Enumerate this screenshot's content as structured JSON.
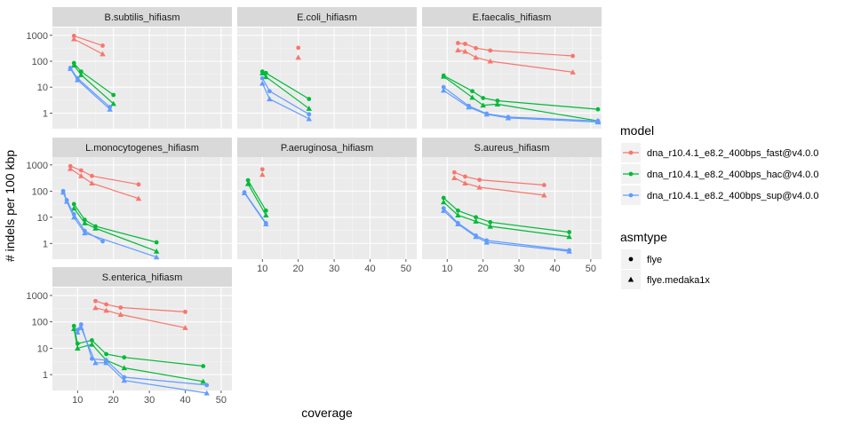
{
  "chart_data": {
    "type": "line",
    "xlabel": "coverage",
    "ylabel": "# indels per 100 kbp",
    "x_ticks": [
      "10",
      "20",
      "30",
      "40",
      "50"
    ],
    "y_ticks": [
      "1",
      "10",
      "100",
      "1000"
    ],
    "y_scale": "log10",
    "xlim": [
      3,
      53
    ],
    "ylim": [
      0.25,
      2000
    ],
    "grid": true,
    "facet_layout": "3x3",
    "legend_position": "right",
    "colors": {
      "dna_r10.4.1_e8.2_400bps_fast@v4.0.0": "#F8766D",
      "dna_r10.4.1_e8.2_400bps_hac@v4.0.0": "#00BA38",
      "dna_r10.4.1_e8.2_400bps_sup@v4.0.0": "#619CFF"
    },
    "legend": {
      "model": {
        "title": "model",
        "entries": [
          "dna_r10.4.1_e8.2_400bps_fast@v4.0.0",
          "dna_r10.4.1_e8.2_400bps_hac@v4.0.0",
          "dna_r10.4.1_e8.2_400bps_sup@v4.0.0"
        ]
      },
      "asmtype": {
        "title": "asmtype",
        "entries": [
          "flye",
          "flye.medaka1x"
        ]
      }
    },
    "panels": [
      {
        "title": "B.subtilis_hifiasm",
        "series": [
          {
            "model": "dna_r10.4.1_e8.2_400bps_fast@v4.0.0",
            "asmtype": "flye",
            "points": [
              [
                9,
                950
              ],
              [
                17,
                400
              ]
            ]
          },
          {
            "model": "dna_r10.4.1_e8.2_400bps_fast@v4.0.0",
            "asmtype": "flye.medaka1x",
            "points": [
              [
                9,
                720
              ],
              [
                17,
                190
              ]
            ]
          },
          {
            "model": "dna_r10.4.1_e8.2_400bps_hac@v4.0.0",
            "asmtype": "flye",
            "points": [
              [
                9,
                85
              ],
              [
                11,
                40
              ],
              [
                20,
                5
              ]
            ]
          },
          {
            "model": "dna_r10.4.1_e8.2_400bps_hac@v4.0.0",
            "asmtype": "flye.medaka1x",
            "points": [
              [
                9,
                70
              ],
              [
                11,
                30
              ],
              [
                20,
                2.3
              ]
            ]
          },
          {
            "model": "dna_r10.4.1_e8.2_400bps_sup@v4.0.0",
            "asmtype": "flye",
            "points": [
              [
                8,
                55
              ],
              [
                10,
                22
              ],
              [
                19,
                1.7
              ]
            ]
          },
          {
            "model": "dna_r10.4.1_e8.2_400bps_sup@v4.0.0",
            "asmtype": "flye.medaka1x",
            "points": [
              [
                8,
                52
              ],
              [
                10,
                19
              ],
              [
                19,
                1.4
              ]
            ]
          }
        ]
      },
      {
        "title": "E.coli_hifiasm",
        "series": [
          {
            "model": "dna_r10.4.1_e8.2_400bps_fast@v4.0.0",
            "asmtype": "flye",
            "points": [
              [
                20,
                330
              ]
            ]
          },
          {
            "model": "dna_r10.4.1_e8.2_400bps_fast@v4.0.0",
            "asmtype": "flye.medaka1x",
            "points": [
              [
                20,
                140
              ]
            ]
          },
          {
            "model": "dna_r10.4.1_e8.2_400bps_hac@v4.0.0",
            "asmtype": "flye",
            "points": [
              [
                10,
                40
              ],
              [
                11,
                35
              ],
              [
                23,
                3.5
              ]
            ]
          },
          {
            "model": "dna_r10.4.1_e8.2_400bps_hac@v4.0.0",
            "asmtype": "flye.medaka1x",
            "points": [
              [
                10,
                35
              ],
              [
                11,
                25
              ],
              [
                23,
                1.5
              ]
            ]
          },
          {
            "model": "dna_r10.4.1_e8.2_400bps_sup@v4.0.0",
            "asmtype": "flye",
            "points": [
              [
                10,
                22
              ],
              [
                12,
                7
              ],
              [
                23,
                0.9
              ]
            ]
          },
          {
            "model": "dna_r10.4.1_e8.2_400bps_sup@v4.0.0",
            "asmtype": "flye.medaka1x",
            "points": [
              [
                10,
                14
              ],
              [
                12,
                3.5
              ],
              [
                23,
                0.6
              ]
            ]
          }
        ]
      },
      {
        "title": "E.faecalis_hifiasm",
        "series": [
          {
            "model": "dna_r10.4.1_e8.2_400bps_fast@v4.0.0",
            "asmtype": "flye",
            "points": [
              [
                13,
                500
              ],
              [
                15,
                470
              ],
              [
                18,
                320
              ],
              [
                22,
                260
              ],
              [
                45,
                160
              ]
            ]
          },
          {
            "model": "dna_r10.4.1_e8.2_400bps_fast@v4.0.0",
            "asmtype": "flye.medaka1x",
            "points": [
              [
                13,
                270
              ],
              [
                15,
                240
              ],
              [
                18,
                140
              ],
              [
                22,
                100
              ],
              [
                45,
                38
              ]
            ]
          },
          {
            "model": "dna_r10.4.1_e8.2_400bps_hac@v4.0.0",
            "asmtype": "flye",
            "points": [
              [
                9,
                28
              ],
              [
                17,
                7
              ],
              [
                20,
                3.8
              ],
              [
                24,
                3
              ],
              [
                52,
                1.4
              ]
            ]
          },
          {
            "model": "dna_r10.4.1_e8.2_400bps_hac@v4.0.0",
            "asmtype": "flye.medaka1x",
            "points": [
              [
                9,
                26
              ],
              [
                17,
                4
              ],
              [
                20,
                2
              ],
              [
                24,
                2.2
              ],
              [
                52,
                0.5
              ]
            ]
          },
          {
            "model": "dna_r10.4.1_e8.2_400bps_sup@v4.0.0",
            "asmtype": "flye",
            "points": [
              [
                9,
                10
              ],
              [
                16,
                1.9
              ],
              [
                21,
                0.95
              ],
              [
                27,
                0.7
              ],
              [
                52,
                0.5
              ]
            ]
          },
          {
            "model": "dna_r10.4.1_e8.2_400bps_sup@v4.0.0",
            "asmtype": "flye.medaka1x",
            "points": [
              [
                9,
                7.5
              ],
              [
                16,
                1.7
              ],
              [
                21,
                0.9
              ],
              [
                27,
                0.65
              ],
              [
                52,
                0.45
              ]
            ]
          }
        ]
      },
      {
        "title": "L.monocytogenes_hifiasm",
        "series": [
          {
            "model": "dna_r10.4.1_e8.2_400bps_fast@v4.0.0",
            "asmtype": "flye",
            "points": [
              [
                8,
                900
              ],
              [
                11,
                620
              ],
              [
                14,
                380
              ],
              [
                27,
                180
              ]
            ]
          },
          {
            "model": "dna_r10.4.1_e8.2_400bps_fast@v4.0.0",
            "asmtype": "flye.medaka1x",
            "points": [
              [
                8,
                720
              ],
              [
                11,
                380
              ],
              [
                14,
                200
              ],
              [
                27,
                52
              ]
            ]
          },
          {
            "model": "dna_r10.4.1_e8.2_400bps_hac@v4.0.0",
            "asmtype": "flye",
            "points": [
              [
                9,
                32
              ],
              [
                12,
                8
              ],
              [
                15,
                4.5
              ],
              [
                32,
                1.1
              ]
            ]
          },
          {
            "model": "dna_r10.4.1_e8.2_400bps_hac@v4.0.0",
            "asmtype": "flye.medaka1x",
            "points": [
              [
                9,
                22
              ],
              [
                12,
                6
              ],
              [
                15,
                3.8
              ],
              [
                32,
                0.5
              ]
            ]
          },
          {
            "model": "dna_r10.4.1_e8.2_400bps_sup@v4.0.0",
            "asmtype": "flye",
            "points": [
              [
                6,
                100
              ],
              [
                7,
                45
              ],
              [
                9,
                13
              ],
              [
                12,
                3
              ],
              [
                17,
                1.2
              ]
            ]
          },
          {
            "model": "dna_r10.4.1_e8.2_400bps_sup@v4.0.0",
            "asmtype": "flye.medaka1x",
            "points": [
              [
                6,
                90
              ],
              [
                7,
                40
              ],
              [
                9,
                10
              ],
              [
                12,
                2.5
              ],
              [
                32,
                0.3
              ]
            ]
          }
        ]
      },
      {
        "title": "P.aeruginosa_hifiasm",
        "series": [
          {
            "model": "dna_r10.4.1_e8.2_400bps_fast@v4.0.0",
            "asmtype": "flye",
            "points": [
              [
                10,
                680
              ]
            ]
          },
          {
            "model": "dna_r10.4.1_e8.2_400bps_fast@v4.0.0",
            "asmtype": "flye.medaka1x",
            "points": [
              [
                10,
                430
              ]
            ]
          },
          {
            "model": "dna_r10.4.1_e8.2_400bps_hac@v4.0.0",
            "asmtype": "flye",
            "points": [
              [
                6,
                260
              ],
              [
                11,
                18
              ]
            ]
          },
          {
            "model": "dna_r10.4.1_e8.2_400bps_hac@v4.0.0",
            "asmtype": "flye.medaka1x",
            "points": [
              [
                6,
                190
              ],
              [
                11,
                12
              ]
            ]
          },
          {
            "model": "dna_r10.4.1_e8.2_400bps_sup@v4.0.0",
            "asmtype": "flye",
            "points": [
              [
                5,
                90
              ],
              [
                11,
                6
              ]
            ]
          },
          {
            "model": "dna_r10.4.1_e8.2_400bps_sup@v4.0.0",
            "asmtype": "flye.medaka1x",
            "points": [
              [
                5,
                85
              ],
              [
                11,
                5.5
              ]
            ]
          }
        ]
      },
      {
        "title": "S.aureus_hifiasm",
        "series": [
          {
            "model": "dna_r10.4.1_e8.2_400bps_fast@v4.0.0",
            "asmtype": "flye",
            "points": [
              [
                12,
                520
              ],
              [
                15,
                360
              ],
              [
                19,
                270
              ],
              [
                37,
                170
              ]
            ]
          },
          {
            "model": "dna_r10.4.1_e8.2_400bps_fast@v4.0.0",
            "asmtype": "flye.medaka1x",
            "points": [
              [
                12,
                320
              ],
              [
                15,
                200
              ],
              [
                19,
                140
              ],
              [
                37,
                70
              ]
            ]
          },
          {
            "model": "dna_r10.4.1_e8.2_400bps_hac@v4.0.0",
            "asmtype": "flye",
            "points": [
              [
                9,
                55
              ],
              [
                13,
                18
              ],
              [
                18,
                10
              ],
              [
                22,
                6.5
              ],
              [
                44,
                2.7
              ]
            ]
          },
          {
            "model": "dna_r10.4.1_e8.2_400bps_hac@v4.0.0",
            "asmtype": "flye.medaka1x",
            "points": [
              [
                9,
                38
              ],
              [
                13,
                12
              ],
              [
                18,
                7
              ],
              [
                22,
                4.5
              ],
              [
                44,
                1.8
              ]
            ]
          },
          {
            "model": "dna_r10.4.1_e8.2_400bps_sup@v4.0.0",
            "asmtype": "flye",
            "points": [
              [
                9,
                22
              ],
              [
                13,
                6
              ],
              [
                18,
                2
              ],
              [
                21,
                1.3
              ],
              [
                44,
                0.55
              ]
            ]
          },
          {
            "model": "dna_r10.4.1_e8.2_400bps_sup@v4.0.0",
            "asmtype": "flye.medaka1x",
            "points": [
              [
                9,
                18
              ],
              [
                13,
                5.5
              ],
              [
                18,
                1.8
              ],
              [
                21,
                1.1
              ],
              [
                44,
                0.5
              ]
            ]
          }
        ]
      },
      {
        "title": "S.enterica_hifiasm",
        "series": [
          {
            "model": "dna_r10.4.1_e8.2_400bps_fast@v4.0.0",
            "asmtype": "flye",
            "points": [
              [
                15,
                620
              ],
              [
                18,
                460
              ],
              [
                22,
                350
              ],
              [
                40,
                240
              ]
            ]
          },
          {
            "model": "dna_r10.4.1_e8.2_400bps_fast@v4.0.0",
            "asmtype": "flye.medaka1x",
            "points": [
              [
                15,
                340
              ],
              [
                18,
                270
              ],
              [
                22,
                190
              ],
              [
                40,
                60
              ]
            ]
          },
          {
            "model": "dna_r10.4.1_e8.2_400bps_hac@v4.0.0",
            "asmtype": "flye",
            "points": [
              [
                9,
                70
              ],
              [
                10,
                15
              ],
              [
                14,
                20
              ],
              [
                18,
                6
              ],
              [
                23,
                4.5
              ],
              [
                45,
                2.1
              ]
            ]
          },
          {
            "model": "dna_r10.4.1_e8.2_400bps_hac@v4.0.0",
            "asmtype": "flye.medaka1x",
            "points": [
              [
                9,
                55
              ],
              [
                10,
                10
              ],
              [
                14,
                14
              ],
              [
                18,
                3.5
              ],
              [
                23,
                1.8
              ],
              [
                45,
                0.55
              ]
            ]
          },
          {
            "model": "dna_r10.4.1_e8.2_400bps_sup@v4.0.0",
            "asmtype": "flye",
            "points": [
              [
                10,
                50
              ],
              [
                11,
                80
              ],
              [
                14,
                4
              ],
              [
                18,
                3.5
              ],
              [
                23,
                0.8
              ],
              [
                46,
                0.4
              ]
            ]
          },
          {
            "model": "dna_r10.4.1_e8.2_400bps_sup@v4.0.0",
            "asmtype": "flye.medaka1x",
            "points": [
              [
                10,
                40
              ],
              [
                11,
                60
              ],
              [
                15,
                2.8
              ],
              [
                18,
                2.8
              ],
              [
                23,
                0.6
              ],
              [
                46,
                0.2
              ]
            ]
          }
        ]
      }
    ]
  }
}
